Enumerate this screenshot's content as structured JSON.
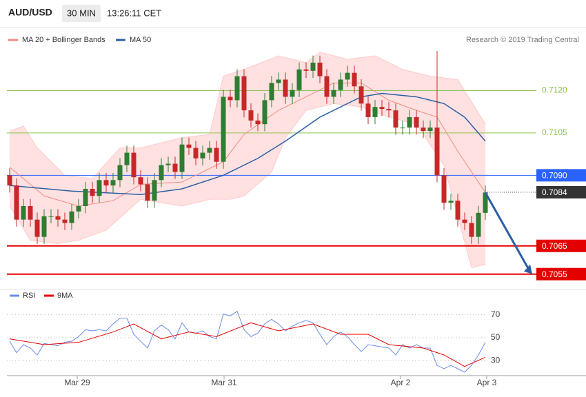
{
  "header": {
    "symbol": "AUD/USD",
    "interval": "30 MIN",
    "time": "13:26:11 CET"
  },
  "chart_data": [
    {
      "type": "candlestick",
      "credit": "Research © 2019 Trading Central",
      "up_color": "#2e7d32",
      "down_color": "#c62828",
      "xlim": [
        0,
        69
      ],
      "ylim": [
        0.7052,
        0.7135
      ],
      "open": [
        0.709,
        0.70864,
        0.70743,
        0.70791,
        0.70743,
        0.70682,
        0.70755,
        0.70755,
        0.70743,
        0.70731,
        0.70772,
        0.70791,
        0.70852,
        0.70827,
        0.70883,
        0.70864,
        0.70883,
        0.70936,
        0.7098,
        0.70893,
        0.70868,
        0.7081,
        0.70883,
        0.70936,
        0.70941,
        0.70912,
        0.71009,
        0.70997,
        0.7096,
        0.7098,
        0.70997,
        0.70948,
        0.71178,
        0.71166,
        0.71251,
        0.7113,
        0.71094,
        0.71081,
        0.71166,
        0.71227,
        0.71239,
        0.71178,
        0.71202,
        0.71275,
        0.7127,
        0.71299,
        0.71251,
        0.71178,
        0.71202,
        0.71239,
        0.71263,
        0.71215,
        0.71154,
        0.71106,
        0.71142,
        0.71135,
        0.7113,
        0.71069,
        0.71069,
        0.71106,
        0.71069,
        0.71057,
        0.71069,
        0.709,
        0.70803,
        0.7081,
        0.70743,
        0.70731,
        0.70682,
        0.70767
      ],
      "high": [
        0.70925,
        0.70889,
        0.70816,
        0.70816,
        0.70768,
        0.7078,
        0.7078,
        0.7078,
        0.70768,
        0.70797,
        0.70816,
        0.70877,
        0.70877,
        0.70908,
        0.70908,
        0.70908,
        0.70961,
        0.71005,
        0.71005,
        0.70918,
        0.70893,
        0.70908,
        0.70961,
        0.70966,
        0.70966,
        0.71034,
        0.71034,
        0.71022,
        0.71005,
        0.71022,
        0.71022,
        0.71203,
        0.71203,
        0.71276,
        0.71276,
        0.71155,
        0.71119,
        0.71191,
        0.71252,
        0.71264,
        0.71264,
        0.71227,
        0.713,
        0.713,
        0.71324,
        0.71324,
        0.71276,
        0.71227,
        0.71264,
        0.71288,
        0.71288,
        0.7124,
        0.71179,
        0.71167,
        0.71167,
        0.7116,
        0.71155,
        0.71094,
        0.71131,
        0.71131,
        0.71094,
        0.71094,
        0.7134,
        0.70925,
        0.70835,
        0.70835,
        0.70768,
        0.70756,
        0.70792,
        0.70864
      ],
      "low": [
        0.70839,
        0.70718,
        0.70718,
        0.70718,
        0.70657,
        0.70657,
        0.7073,
        0.70718,
        0.70706,
        0.70706,
        0.70747,
        0.70766,
        0.70802,
        0.70802,
        0.70839,
        0.70839,
        0.70858,
        0.70911,
        0.70868,
        0.70843,
        0.70785,
        0.70785,
        0.70858,
        0.70911,
        0.70887,
        0.70887,
        0.70972,
        0.70935,
        0.70935,
        0.70955,
        0.70923,
        0.70923,
        0.71141,
        0.71141,
        0.71105,
        0.71069,
        0.71056,
        0.71056,
        0.71141,
        0.71202,
        0.71153,
        0.71153,
        0.71177,
        0.71245,
        0.71245,
        0.71226,
        0.71153,
        0.71153,
        0.71177,
        0.71214,
        0.7119,
        0.71129,
        0.71081,
        0.71081,
        0.7111,
        0.71105,
        0.71044,
        0.71044,
        0.71044,
        0.71044,
        0.71032,
        0.71032,
        0.70875,
        0.70778,
        0.70778,
        0.70718,
        0.70706,
        0.70657,
        0.70657,
        0.70742
      ],
      "close": [
        0.70864,
        0.70743,
        0.70791,
        0.70743,
        0.70682,
        0.70755,
        0.70755,
        0.70743,
        0.70731,
        0.70772,
        0.70791,
        0.70852,
        0.70827,
        0.70883,
        0.70864,
        0.70883,
        0.70936,
        0.7098,
        0.70893,
        0.70868,
        0.7081,
        0.70883,
        0.70936,
        0.70941,
        0.70912,
        0.71009,
        0.70997,
        0.7096,
        0.7098,
        0.70997,
        0.70948,
        0.71178,
        0.71166,
        0.71251,
        0.7113,
        0.71094,
        0.71081,
        0.71166,
        0.71227,
        0.71239,
        0.71178,
        0.71202,
        0.71275,
        0.7127,
        0.71299,
        0.71251,
        0.71178,
        0.71202,
        0.71239,
        0.71263,
        0.71215,
        0.71154,
        0.71106,
        0.71142,
        0.71135,
        0.7113,
        0.71069,
        0.71069,
        0.71106,
        0.71069,
        0.71057,
        0.71069,
        0.709,
        0.70803,
        0.7081,
        0.70743,
        0.70731,
        0.70682,
        0.70767,
        0.70839
      ],
      "ma20": {
        "name": "MA 20 + Bollinger Bands",
        "color": "#f28b82",
        "x": [
          0,
          5,
          10,
          15,
          19,
          25,
          31,
          34,
          39,
          43,
          47,
          51,
          55,
          59,
          62,
          65,
          69
        ],
        "values": [
          0.70929,
          0.70827,
          0.70791,
          0.7081,
          0.70868,
          0.70876,
          0.70948,
          0.71045,
          0.7113,
          0.71178,
          0.71227,
          0.71227,
          0.71166,
          0.7113,
          0.71106,
          0.70985,
          0.70839
        ]
      },
      "ma50": {
        "name": "MA 50",
        "color": "#2b5fa5",
        "x": [
          0,
          9,
          19,
          25,
          31,
          36,
          40,
          45,
          51,
          54,
          59,
          63,
          66,
          69
        ],
        "values": [
          0.70864,
          0.70844,
          0.70832,
          0.70852,
          0.709,
          0.7096,
          0.71021,
          0.71106,
          0.71178,
          0.7119,
          0.71178,
          0.71154,
          0.71106,
          0.71021
        ]
      },
      "bands": {
        "fill": "#ffe1e1",
        "color": "#ffc9c9",
        "upper": {
          "x": [
            0,
            2,
            4,
            8,
            12,
            16,
            19,
            25,
            29,
            31,
            34,
            39,
            43,
            45,
            49,
            53,
            57,
            61,
            65,
            69
          ],
          "values": [
            0.71057,
            0.71074,
            0.70997,
            0.709,
            0.70888,
            0.70997,
            0.70997,
            0.71033,
            0.71045,
            0.71251,
            0.71275,
            0.71323,
            0.71299,
            0.71336,
            0.71311,
            0.71323,
            0.71275,
            0.71251,
            0.71239,
            0.71081
          ]
        },
        "lower": {
          "x": [
            0,
            3,
            7,
            10,
            14,
            19,
            25,
            29,
            32,
            34,
            38,
            40,
            43,
            47,
            51,
            55,
            59,
            63,
            67,
            69
          ],
          "values": [
            0.70791,
            0.7067,
            0.70658,
            0.7067,
            0.70706,
            0.70815,
            0.70791,
            0.70815,
            0.70815,
            0.70827,
            0.70912,
            0.71033,
            0.7113,
            0.71154,
            0.71142,
            0.71106,
            0.71081,
            0.70936,
            0.70573,
            0.70585
          ]
        }
      },
      "levels": [
        {
          "value": 0.712,
          "label": "0.7120",
          "color": "#8bc34a",
          "kind": "line"
        },
        {
          "value": 0.7105,
          "label": "0.7105",
          "color": "#8bc34a",
          "kind": "line"
        },
        {
          "value": 0.709,
          "label": "0.7090",
          "color": "#2962ff",
          "kind": "box"
        },
        {
          "value": 0.7084,
          "label": "0.7084",
          "color": "#333333",
          "kind": "price"
        },
        {
          "value": 0.7065,
          "label": "0.7065",
          "color": "#e50000",
          "kind": "box"
        },
        {
          "value": 0.7055,
          "label": "0.7055",
          "color": "#e50000",
          "kind": "box"
        }
      ],
      "forecast_color": "#2b5fa5"
    },
    {
      "type": "line",
      "xlim": [
        0,
        69
      ],
      "ylim": [
        20,
        80
      ],
      "yticks": [
        30,
        50,
        70
      ],
      "xticks": [
        {
          "value": 9.8,
          "label": "Mar 29"
        },
        {
          "value": 31.1,
          "label": "Mar 31"
        },
        {
          "value": 56.7,
          "label": "Apr 2"
        },
        {
          "value": 69.2,
          "label": "Apr 3"
        }
      ],
      "series": [
        {
          "name": "RSI",
          "color": "#6b8be8",
          "x": [
            0,
            1,
            2,
            3,
            4,
            5,
            6,
            7,
            8,
            9,
            10,
            11,
            12,
            13,
            14,
            15,
            16,
            17,
            18,
            19,
            20,
            21,
            22,
            23,
            24,
            25,
            26,
            27,
            28,
            29,
            30,
            31,
            32,
            33,
            34,
            35,
            36,
            37,
            38,
            39,
            40,
            41,
            42,
            43,
            44,
            45,
            46,
            47,
            48,
            49,
            50,
            51,
            52,
            53,
            54,
            55,
            56,
            57,
            58,
            59,
            60,
            61,
            62,
            63,
            64,
            65,
            66,
            67,
            68,
            69
          ],
          "values": [
            47,
            37,
            44,
            41,
            35,
            45,
            44,
            43,
            46,
            47,
            51,
            57,
            56,
            57,
            56,
            62,
            67,
            67,
            53,
            47,
            41,
            56,
            61,
            57,
            49,
            63,
            55,
            54,
            56,
            51,
            49,
            70.6,
            69,
            73,
            57,
            51,
            54,
            62,
            66,
            62,
            56,
            60,
            63,
            65,
            63,
            53,
            44,
            51,
            55,
            51,
            44,
            38,
            44,
            43,
            42,
            41,
            35,
            44,
            41,
            44,
            41,
            41,
            26,
            23,
            26,
            23,
            20,
            26,
            35,
            46
          ]
        },
        {
          "name": "9MA",
          "color": "#e50000",
          "x": [
            0,
            5,
            10,
            15,
            18,
            22,
            26,
            30,
            35,
            39,
            44,
            48,
            52,
            55,
            60,
            63,
            66,
            69
          ],
          "values": [
            49,
            44,
            46,
            55,
            62,
            49,
            55,
            51,
            63,
            56,
            62,
            53,
            53,
            44,
            41,
            35,
            25,
            33
          ]
        }
      ]
    }
  ]
}
